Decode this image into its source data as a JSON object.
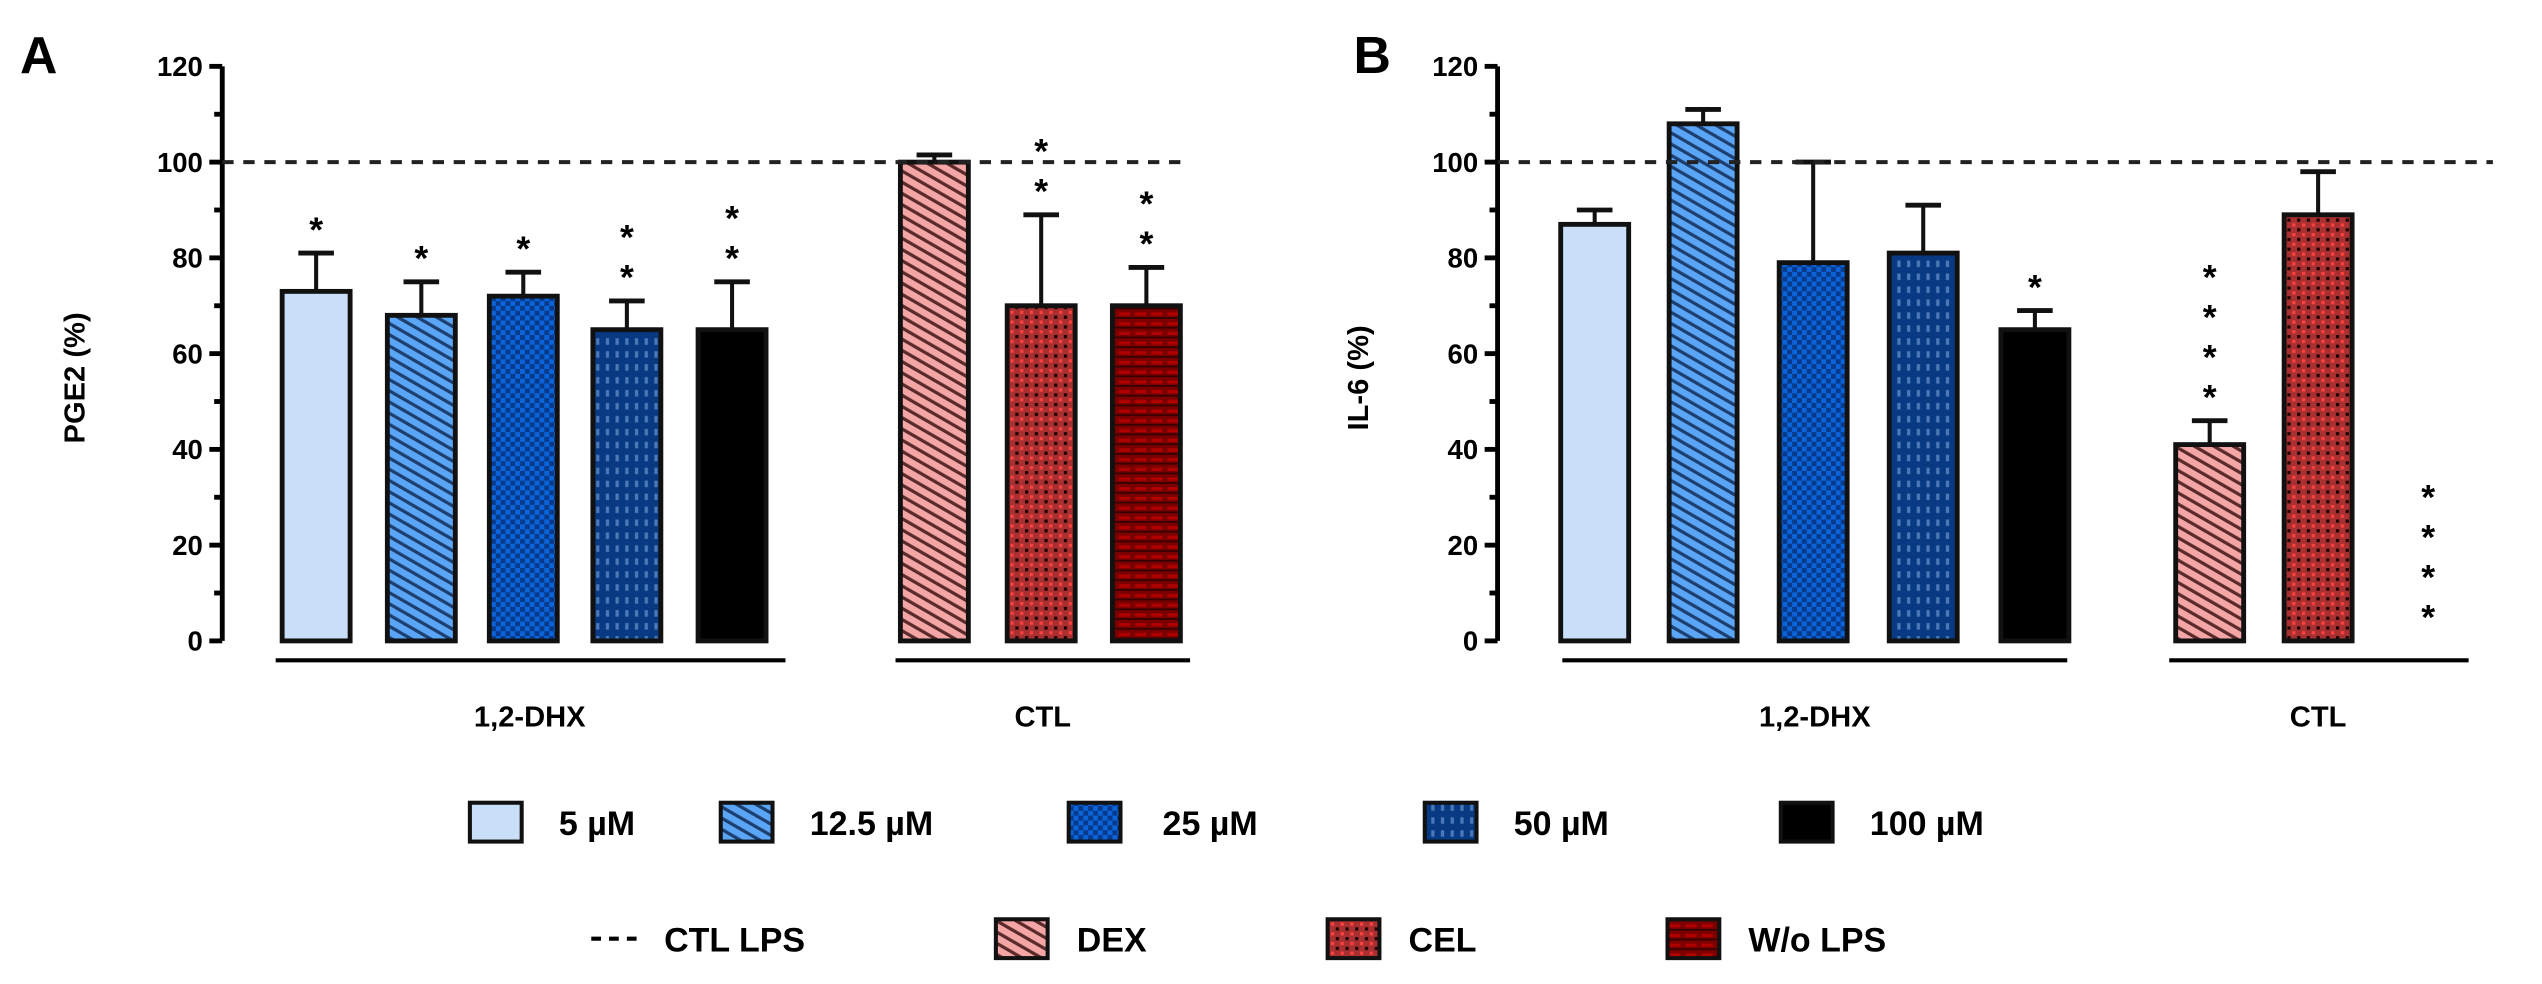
{
  "chart_data": [
    {
      "type": "bar",
      "panel": "A",
      "ylabel": "PGE2 (%)",
      "ylim": [
        0,
        120
      ],
      "yticks": [
        0,
        20,
        40,
        60,
        80,
        100,
        120
      ],
      "reference_line": {
        "value": 100,
        "label": "CTL LPS",
        "style": "dashed"
      },
      "groups": [
        {
          "label": "1,2-DHX",
          "members": [
            0,
            1,
            2,
            3,
            4
          ]
        },
        {
          "label": "CTL",
          "members": [
            5,
            6,
            7
          ]
        }
      ],
      "categories": [
        "5 µM",
        "12.5 µM",
        "25 µM",
        "50 µM",
        "100 µM",
        "DEX",
        "CEL",
        "W/o LPS"
      ],
      "values": [
        73,
        68,
        72,
        65,
        65,
        100,
        70,
        70
      ],
      "errors": [
        8,
        7,
        5,
        6,
        10,
        1.5,
        19,
        8
      ],
      "significance": [
        "*",
        "*",
        "*",
        "**",
        "**",
        "",
        "**",
        "**"
      ]
    },
    {
      "type": "bar",
      "panel": "B",
      "ylabel": "IL-6 (%)",
      "ylim": [
        0,
        120
      ],
      "yticks": [
        0,
        20,
        40,
        60,
        80,
        100,
        120
      ],
      "reference_line": {
        "value": 100,
        "label": "CTL LPS",
        "style": "dashed"
      },
      "groups": [
        {
          "label": "1,2-DHX",
          "members": [
            0,
            1,
            2,
            3,
            4
          ]
        },
        {
          "label": "CTL",
          "members": [
            5,
            6,
            7
          ]
        }
      ],
      "categories": [
        "5 µM",
        "12.5 µM",
        "25 µM",
        "50 µM",
        "100 µM",
        "DEX",
        "CEL",
        "W/o LPS"
      ],
      "values": [
        87,
        108,
        79,
        81,
        65,
        41,
        89,
        0
      ],
      "errors": [
        3,
        3,
        21,
        10,
        4,
        5,
        9,
        0
      ],
      "significance": [
        "",
        "",
        "",
        "",
        "*",
        "****",
        "",
        "****"
      ]
    }
  ],
  "legend": {
    "items": [
      {
        "label": "5 µM",
        "color": "#c9def7",
        "pattern": "solid"
      },
      {
        "label": "12.5 µM",
        "color": "#4f9cf0",
        "pattern": "diagonal"
      },
      {
        "label": "25 µM",
        "color": "#0b63d9",
        "pattern": "checker"
      },
      {
        "label": "50 µM",
        "color": "#073a86",
        "pattern": "dots"
      },
      {
        "label": "100 µM",
        "color": "#000000",
        "pattern": "solid"
      },
      {
        "label": "CTL LPS",
        "color": "#000000",
        "pattern": "dashed-line"
      },
      {
        "label": "DEX",
        "color": "#f0a0a0",
        "pattern": "diagonal"
      },
      {
        "label": "CEL",
        "color": "#b02a2a",
        "pattern": "checker"
      },
      {
        "label": "W/o LPS",
        "color": "#7a0000",
        "pattern": "brick"
      }
    ]
  }
}
